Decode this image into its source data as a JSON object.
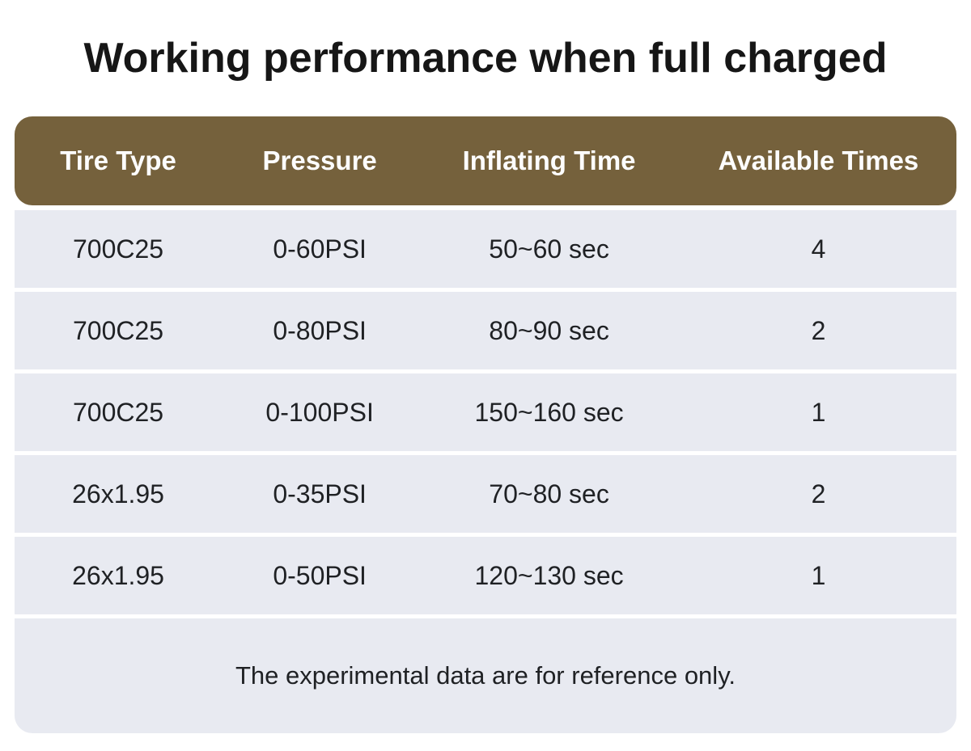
{
  "title": "Working performance when full charged",
  "colors": {
    "header_bg": "#75613C",
    "row_bg": "#E8EAF1",
    "header_text": "#FFFFFF",
    "body_text": "#1F2124",
    "page_bg": "#FFFFFF"
  },
  "chart_data": {
    "type": "table",
    "title": "Working performance when full charged",
    "columns": [
      "Tire Type",
      "Pressure",
      "Inflating Time",
      "Available Times"
    ],
    "rows": [
      [
        "700C25",
        "0-60PSI",
        "50~60 sec",
        "4"
      ],
      [
        "700C25",
        "0-80PSI",
        "80~90 sec",
        "2"
      ],
      [
        "700C25",
        "0-100PSI",
        "150~160 sec",
        "1"
      ],
      [
        "26x1.95",
        "0-35PSI",
        "70~80 sec",
        "2"
      ],
      [
        "26x1.95",
        "0-50PSI",
        "120~130 sec",
        "1"
      ]
    ],
    "note": "The experimental data are for reference only."
  }
}
